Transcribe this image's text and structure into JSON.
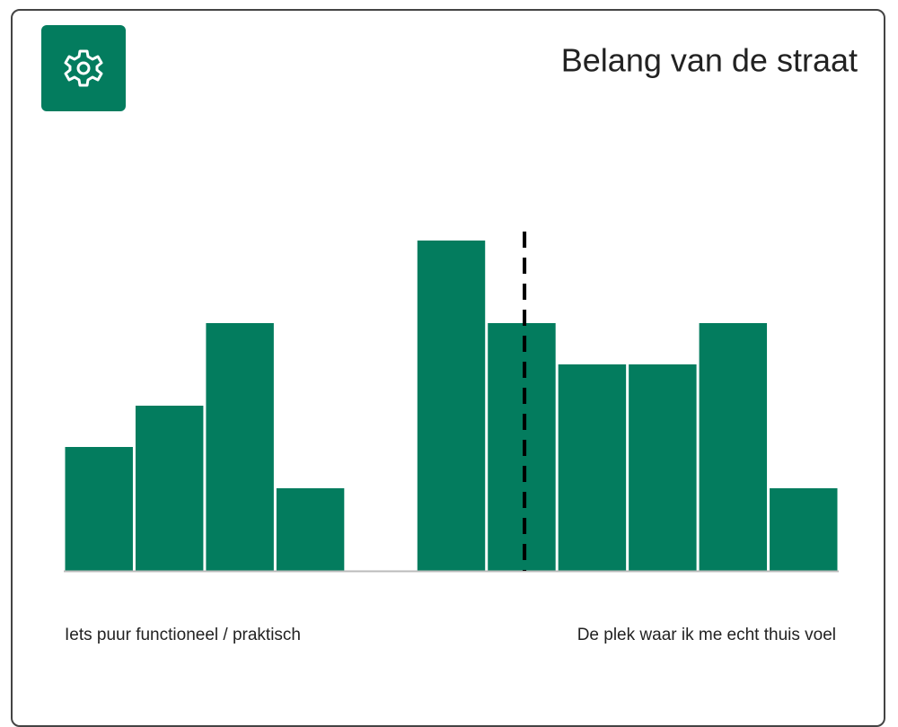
{
  "chart_data": {
    "type": "histogram",
    "title": "Belang van de straat",
    "bins": [
      0,
      1,
      2,
      3,
      4,
      5,
      6,
      7,
      8,
      9,
      10,
      11
    ],
    "values": [
      3,
      4,
      6,
      2,
      0,
      8,
      6,
      5,
      5,
      6,
      2
    ],
    "color": "#037c5e",
    "xlim": [
      0,
      11
    ],
    "ylim": [
      0,
      8
    ],
    "reference_line": 6.54,
    "left_label": "Iets puur functioneel / praktisch",
    "right_label": "De plek waar ik me echt thuis voel"
  }
}
